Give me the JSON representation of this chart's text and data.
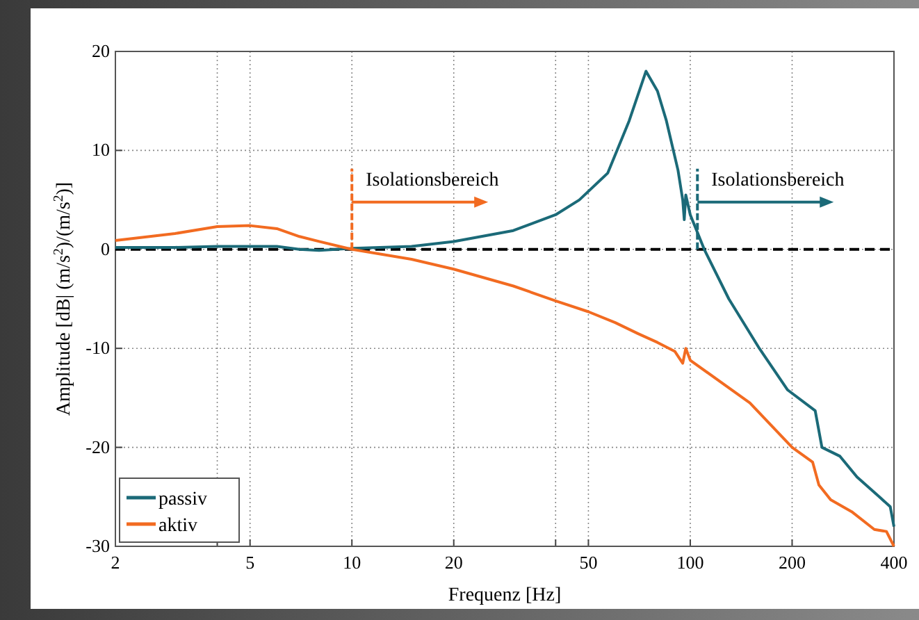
{
  "chart_data": {
    "type": "line",
    "xlabel": "Frequenz [Hz]",
    "ylabel": "Amplitude [dB| (m/s$^{2}$)/(m/s$^{2}$)]",
    "log": "x",
    "xlim": [
      2,
      400
    ],
    "xticks": [
      2,
      {
        "value": 4,
        "label": null
      },
      5,
      10,
      20,
      {
        "value": 40,
        "label": null
      },
      50,
      100,
      200,
      400
    ],
    "ylim": [
      -30,
      20
    ],
    "yticks": [
      -30,
      -20,
      -10,
      0,
      10,
      20
    ],
    "grid": true,
    "legend": "bottom left",
    "line_style": "solid",
    "marker": "none",
    "series": [
      {
        "name": "passiv",
        "color": "#1b6a78",
        "x": [
          2,
          3,
          4,
          5,
          6,
          7,
          8,
          10,
          15,
          20,
          30,
          40,
          47,
          57,
          66,
          74,
          80,
          85,
          92,
          95,
          96,
          97,
          100,
          110,
          130,
          160,
          194,
          234,
          245,
          277,
          311,
          362,
          390,
          400
        ],
        "values": [
          0.2,
          0.2,
          0.3,
          0.3,
          0.3,
          0,
          -0.1,
          0.1,
          0.3,
          0.8,
          1.9,
          3.5,
          5,
          7.7,
          13,
          18,
          16,
          13,
          8,
          5,
          3,
          5.5,
          3.5,
          0,
          -5,
          -10,
          -14.2,
          -16.3,
          -20,
          -20.9,
          -23,
          -25,
          -26,
          -28
        ]
      },
      {
        "name": "aktiv",
        "color": "#f26b21",
        "x": [
          2,
          3,
          4,
          5,
          6,
          7,
          8,
          10,
          15,
          20,
          30,
          40,
          50,
          60,
          70,
          80,
          90,
          95,
          97,
          100,
          150,
          200,
          230,
          240,
          260,
          300,
          350,
          380,
          400
        ],
        "values": [
          0.9,
          1.6,
          2.3,
          2.4,
          2.1,
          1.3,
          0.8,
          0,
          -1,
          -2,
          -3.7,
          -5.2,
          -6.3,
          -7.4,
          -8.5,
          -9.4,
          -10.3,
          -11.5,
          -10,
          -11.2,
          -15.5,
          -20,
          -21.5,
          -23.8,
          -25.3,
          -26.5,
          -28.3,
          -28.5,
          -30
        ]
      }
    ],
    "ref_lines": [
      {
        "axis": "y",
        "value": 0,
        "color": "#000000",
        "line_style": "dashed"
      }
    ],
    "annotations": [
      {
        "text": "Isolationsbereich",
        "x": 10,
        "y": 0
      },
      {
        "text": "Isolationsbereich",
        "x": 105,
        "y": 0
      }
    ]
  }
}
